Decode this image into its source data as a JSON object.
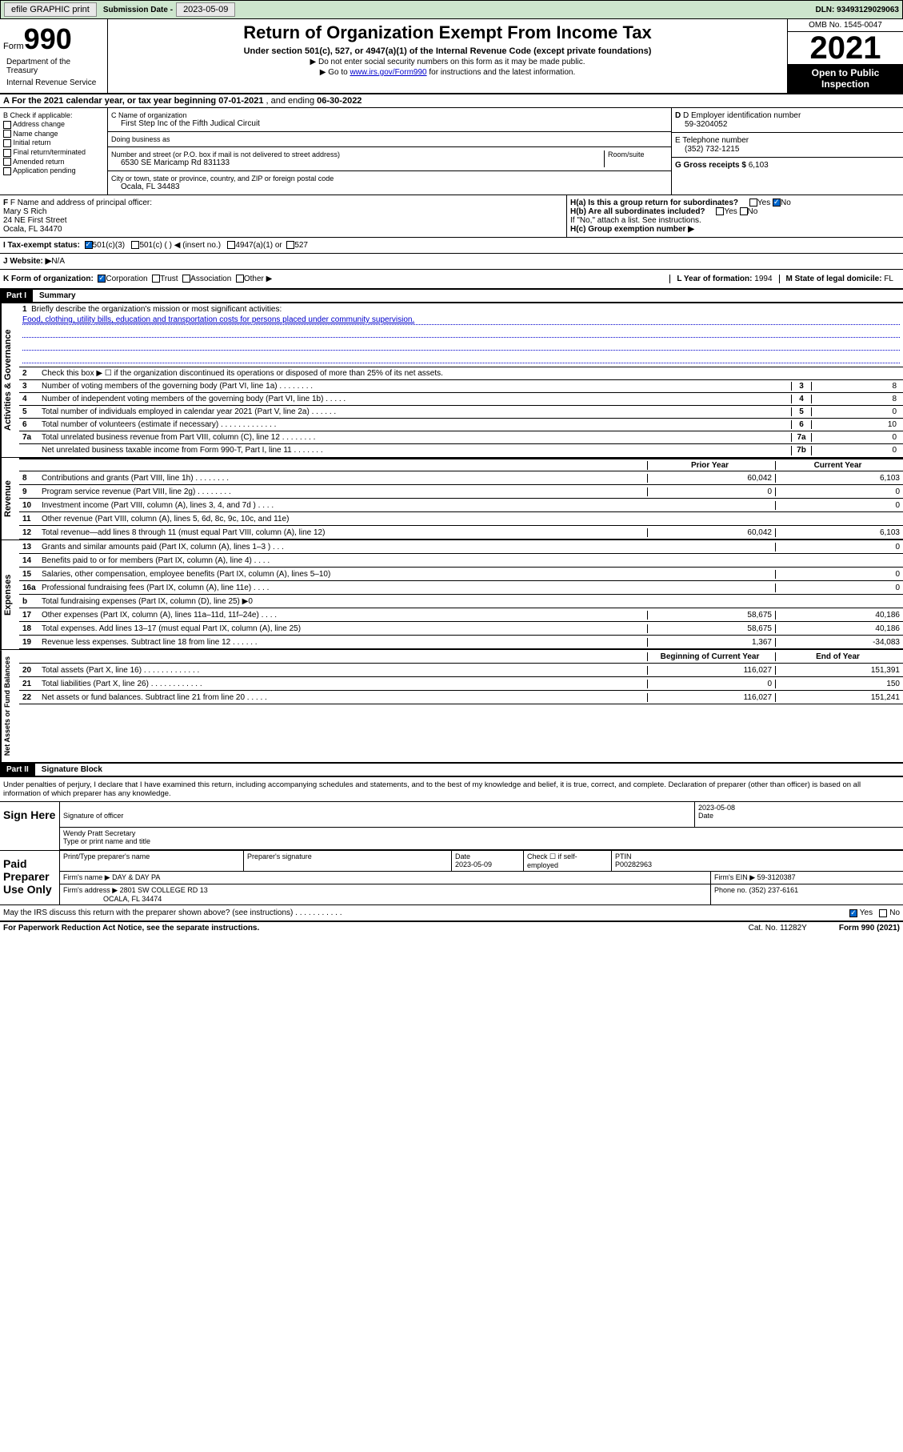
{
  "topbar": {
    "btn1": "efile GRAPHIC print",
    "sub_label": "Submission Date - ",
    "sub_date": "2023-05-09",
    "dln": "DLN: 93493129029063"
  },
  "header": {
    "form_label": "Form",
    "form_number": "990",
    "title": "Return of Organization Exempt From Income Tax",
    "subtitle": "Under section 501(c), 527, or 4947(a)(1) of the Internal Revenue Code (except private foundations)",
    "note1": "▶ Do not enter social security numbers on this form as it may be made public.",
    "note2_pre": "▶ Go to ",
    "note2_link": "www.irs.gov/Form990",
    "note2_post": " for instructions and the latest information.",
    "omb": "OMB No. 1545-0047",
    "year": "2021",
    "open": "Open to Public Inspection",
    "dept": "Department of the Treasury",
    "irs": "Internal Revenue Service"
  },
  "row_a": {
    "text": "A For the 2021 calendar year, or tax year beginning ",
    "begin": "07-01-2021",
    "mid": " , and ending ",
    "end": "06-30-2022"
  },
  "col_b": {
    "label": "B Check if applicable:",
    "opts": [
      "Address change",
      "Name change",
      "Initial return",
      "Final return/terminated",
      "Amended return",
      "Application pending"
    ]
  },
  "col_c": {
    "name_label": "C Name of organization",
    "name": "First Step Inc of the Fifth Judical Circuit",
    "dba_label": "Doing business as",
    "dba": "",
    "addr_label": "Number and street (or P.O. box if mail is not delivered to street address)",
    "room_label": "Room/suite",
    "addr": "6530 SE Maricamp Rd 831133",
    "city_label": "City or town, state or province, country, and ZIP or foreign postal code",
    "city": "Ocala, FL  34483"
  },
  "col_d": {
    "label": "D Employer identification number",
    "ein": "59-3204052",
    "tel_label": "E Telephone number",
    "tel": "(352) 732-1215",
    "gross_label": "G Gross receipts $ ",
    "gross": "6,103"
  },
  "col_f": {
    "label": "F Name and address of principal officer:",
    "name": "Mary S Rich",
    "addr1": "24 NE First Street",
    "addr2": "Ocala, FL  34470"
  },
  "col_h": {
    "ha": "H(a)  Is this a group return for subordinates?",
    "hb": "H(b)  Are all subordinates included?",
    "hb_note": "If \"No,\" attach a list. See instructions.",
    "hc": "H(c)  Group exemption number ▶"
  },
  "row_i": {
    "label": "I   Tax-exempt status:",
    "opt1": "501(c)(3)",
    "opt2": "501(c) (   ) ◀ (insert no.)",
    "opt3": "4947(a)(1) or",
    "opt4": "527"
  },
  "row_j": {
    "label": "J   Website: ▶ ",
    "val": "N/A"
  },
  "row_k": {
    "label": "K Form of organization:",
    "opts": [
      "Corporation",
      "Trust",
      "Association",
      "Other ▶"
    ],
    "l_label": "L Year of formation: ",
    "l_val": "1994",
    "m_label": "M State of legal domicile: ",
    "m_val": "FL"
  },
  "part1": {
    "header": "Part I",
    "title": "Summary"
  },
  "gov": {
    "label": "Activities & Governance",
    "q1_label": "Briefly describe the organization's mission or most significant activities:",
    "q1_text": "Food, clothing, utility bills, education and transportation costs for persons placed under community supervision.",
    "q2": "Check this box ▶ ☐  if the organization discontinued its operations or disposed of more than 25% of its net assets.",
    "rows": [
      {
        "n": "3",
        "t": "Number of voting members of the governing body (Part VI, line 1a)   .    .    .    .    .    .    .    .",
        "box": "3",
        "v": "8"
      },
      {
        "n": "4",
        "t": "Number of independent voting members of the governing body (Part VI, line 1b)  .    .    .    .    .",
        "box": "4",
        "v": "8"
      },
      {
        "n": "5",
        "t": "Total number of individuals employed in calendar year 2021 (Part V, line 2a)   .    .    .    .    .    .",
        "box": "5",
        "v": "0"
      },
      {
        "n": "6",
        "t": "Total number of volunteers (estimate if necessary)   .    .    .    .    .    .    .    .    .    .    .    .    .",
        "box": "6",
        "v": "10"
      },
      {
        "n": "7a",
        "t": "Total unrelated business revenue from Part VIII, column (C), line 12   .    .    .    .    .    .    .    .",
        "box": "7a",
        "v": "0"
      },
      {
        "n": "",
        "t": "Net unrelated business taxable income from Form 990-T, Part I, line 11   .    .    .    .    .    .    .",
        "box": "7b",
        "v": "0"
      }
    ]
  },
  "rev": {
    "label": "Revenue",
    "py_header": "Prior Year",
    "cy_header": "Current Year",
    "rows": [
      {
        "n": "8",
        "t": "Contributions and grants (Part VIII, line 1h)    .    .    .    .    .    .    .    .",
        "py": "60,042",
        "cy": "6,103"
      },
      {
        "n": "9",
        "t": "Program service revenue (Part VIII, line 2g)   .    .    .    .    .    .    .    .",
        "py": "0",
        "cy": "0"
      },
      {
        "n": "10",
        "t": "Investment income (Part VIII, column (A), lines 3, 4, and 7d )   .    .    .    .",
        "py": "",
        "cy": "0"
      },
      {
        "n": "11",
        "t": "Other revenue (Part VIII, column (A), lines 5, 6d, 8c, 9c, 10c, and 11e)",
        "py": "",
        "cy": ""
      },
      {
        "n": "12",
        "t": "Total revenue—add lines 8 through 11 (must equal Part VIII, column (A), line 12)",
        "py": "60,042",
        "cy": "6,103"
      }
    ]
  },
  "exp": {
    "label": "Expenses",
    "rows": [
      {
        "n": "13",
        "t": "Grants and similar amounts paid (Part IX, column (A), lines 1–3 )   .    .    .",
        "py": "",
        "cy": "0"
      },
      {
        "n": "14",
        "t": "Benefits paid to or for members (Part IX, column (A), line 4)   .    .    .    .",
        "py": "",
        "cy": ""
      },
      {
        "n": "15",
        "t": "Salaries, other compensation, employee benefits (Part IX, column (A), lines 5–10)",
        "py": "",
        "cy": "0"
      },
      {
        "n": "16a",
        "t": "Professional fundraising fees (Part IX, column (A), line 11e)   .    .    .    .",
        "py": "",
        "cy": "0"
      },
      {
        "n": "b",
        "t": "Total fundraising expenses (Part IX, column (D), line 25) ▶0",
        "py": "gray",
        "cy": "gray"
      },
      {
        "n": "17",
        "t": "Other expenses (Part IX, column (A), lines 11a–11d, 11f–24e)   .    .    .    .",
        "py": "58,675",
        "cy": "40,186"
      },
      {
        "n": "18",
        "t": "Total expenses. Add lines 13–17 (must equal Part IX, column (A), line 25)",
        "py": "58,675",
        "cy": "40,186"
      },
      {
        "n": "19",
        "t": "Revenue less expenses. Subtract line 18 from line 12   .    .    .    .    .    .",
        "py": "1,367",
        "cy": "-34,083"
      }
    ]
  },
  "net": {
    "label": "Net Assets or Fund Balances",
    "by_header": "Beginning of Current Year",
    "ey_header": "End of Year",
    "rows": [
      {
        "n": "20",
        "t": "Total assets (Part X, line 16)   .    .    .    .    .    .    .    .    .    .    .    .    .",
        "py": "116,027",
        "cy": "151,391"
      },
      {
        "n": "21",
        "t": "Total liabilities (Part X, line 26)   .    .    .    .    .    .    .    .    .    .    .    .",
        "py": "0",
        "cy": "150"
      },
      {
        "n": "22",
        "t": "Net assets or fund balances. Subtract line 21 from line 20   .    .    .    .    .",
        "py": "116,027",
        "cy": "151,241"
      }
    ]
  },
  "part2": {
    "header": "Part II",
    "title": "Signature Block"
  },
  "declare": "Under penalties of perjury, I declare that I have examined this return, including accompanying schedules and statements, and to the best of my knowledge and belief, it is true, correct, and complete. Declaration of preparer (other than officer) is based on all information of which preparer has any knowledge.",
  "sign": {
    "label": "Sign Here",
    "sig_label": "Signature of officer",
    "date_label": "Date",
    "date": "2023-05-08",
    "name": "Wendy Pratt  Secretary",
    "name_label": "Type or print name and title"
  },
  "paid": {
    "label": "Paid Preparer Use Only",
    "col1": "Print/Type preparer's name",
    "col2": "Preparer's signature",
    "col3_label": "Date",
    "col3": "2023-05-09",
    "col4": "Check ☐ if self-employed",
    "col5_label": "PTIN",
    "col5": "P00282963",
    "firm_label": "Firm's name    ▶ ",
    "firm": "DAY & DAY PA",
    "ein_label": "Firm's EIN ▶ ",
    "ein": "59-3120387",
    "addr_label": "Firm's address ▶ ",
    "addr1": "2801 SW COLLEGE RD 13",
    "addr2": "OCALA, FL  34474",
    "phone_label": "Phone no. ",
    "phone": "(352) 237-6161"
  },
  "discuss": "May the IRS discuss this return with the preparer shown above? (see instructions)   .    .    .    .    .    .    .    .    .    .    .",
  "footer": {
    "left": "For Paperwork Reduction Act Notice, see the separate instructions.",
    "cat": "Cat. No. 11282Y",
    "right": "Form 990 (2021)"
  }
}
